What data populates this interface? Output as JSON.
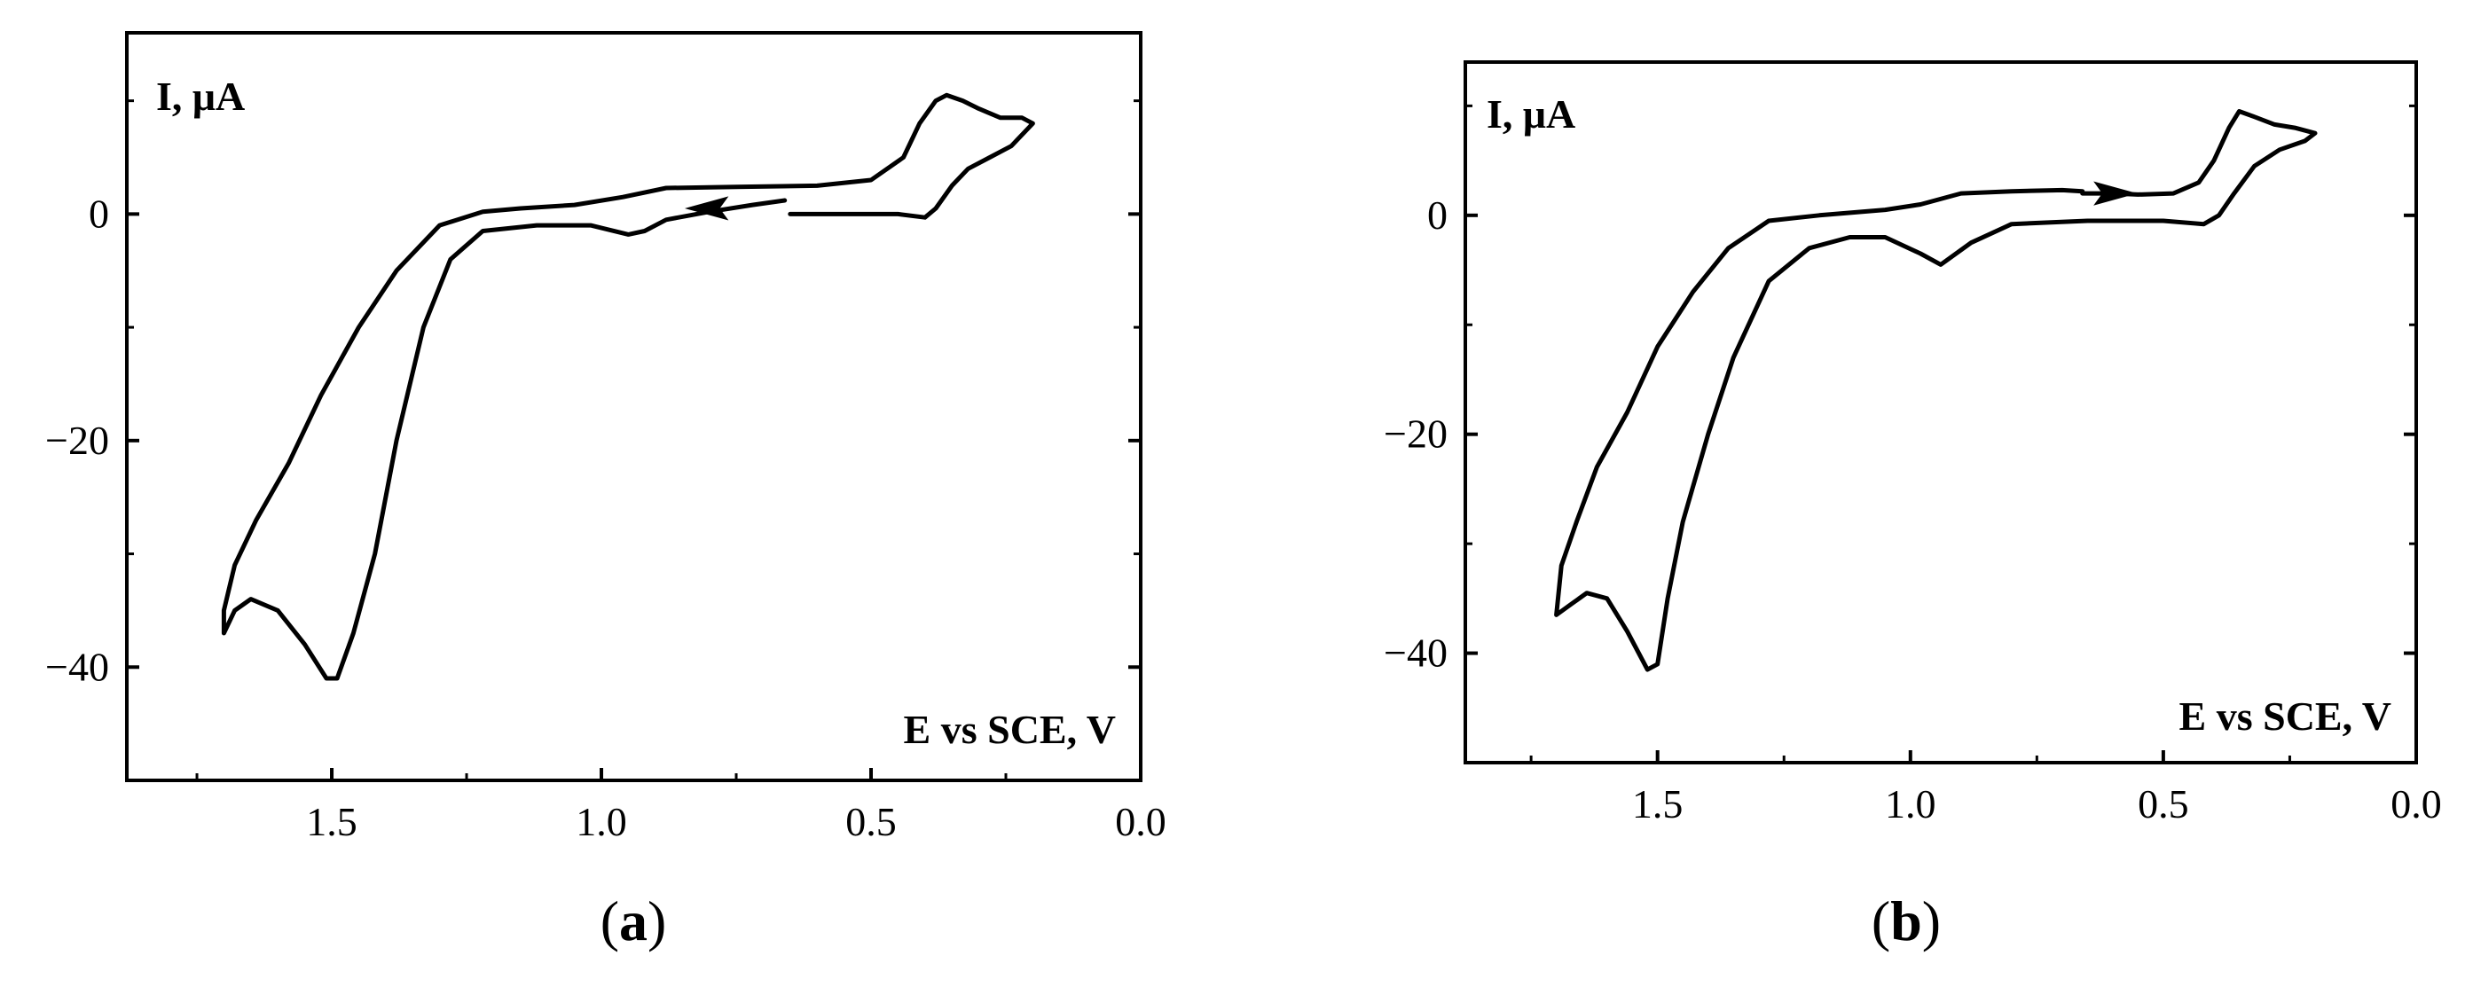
{
  "chart_data": [
    {
      "type": "line",
      "panel_label": "a",
      "ylabel": "I, μA",
      "xlabel": "E vs SCE, V",
      "xlim": [
        1.88,
        0.0
      ],
      "ylim": [
        -50,
        16
      ],
      "x_ticks": [
        "1.5",
        "1.0",
        "0.5",
        "0.0"
      ],
      "y_ticks": [
        "0",
        "−20",
        "−40"
      ],
      "grid": false,
      "scan_direction": "toward higher potential (arrow pointing left at 0.8 V)",
      "series": [
        {
          "points": [
            [
              0.65,
              0.0
            ],
            [
              0.55,
              0.0
            ],
            [
              0.45,
              0.0
            ],
            [
              0.4,
              -0.3
            ],
            [
              0.38,
              0.5
            ],
            [
              0.35,
              2.5
            ],
            [
              0.32,
              4.0
            ],
            [
              0.28,
              5.0
            ],
            [
              0.24,
              6.0
            ],
            [
              0.2,
              8.0
            ],
            [
              0.22,
              8.5
            ],
            [
              0.26,
              8.5
            ],
            [
              0.3,
              9.3
            ],
            [
              0.33,
              10.0
            ],
            [
              0.36,
              10.5
            ],
            [
              0.38,
              10.0
            ],
            [
              0.41,
              8.0
            ],
            [
              0.44,
              5.0
            ],
            [
              0.5,
              3.0
            ],
            [
              0.6,
              2.5
            ],
            [
              0.75,
              2.4
            ],
            [
              0.88,
              2.3
            ],
            [
              0.96,
              1.5
            ],
            [
              1.05,
              0.8
            ],
            [
              1.15,
              0.5
            ],
            [
              1.22,
              0.2
            ],
            [
              1.3,
              -1.0
            ],
            [
              1.38,
              -5.0
            ],
            [
              1.45,
              -10.0
            ],
            [
              1.52,
              -16.0
            ],
            [
              1.58,
              -22.0
            ],
            [
              1.64,
              -27.0
            ],
            [
              1.68,
              -31.0
            ],
            [
              1.7,
              -35.0
            ],
            [
              1.7,
              -37.0
            ],
            [
              1.68,
              -35.0
            ],
            [
              1.65,
              -34.0
            ],
            [
              1.6,
              -35.0
            ],
            [
              1.55,
              -38.0
            ],
            [
              1.51,
              -41.0
            ],
            [
              1.49,
              -41.0
            ],
            [
              1.46,
              -37.0
            ],
            [
              1.42,
              -30.0
            ],
            [
              1.38,
              -20.0
            ],
            [
              1.33,
              -10.0
            ],
            [
              1.28,
              -4.0
            ],
            [
              1.22,
              -1.5
            ],
            [
              1.12,
              -1.0
            ],
            [
              1.02,
              -1.0
            ],
            [
              0.95,
              -1.8
            ],
            [
              0.92,
              -1.5
            ],
            [
              0.88,
              -0.5
            ],
            [
              0.8,
              0.2
            ],
            [
              0.72,
              0.8
            ],
            [
              0.66,
              1.2
            ]
          ]
        }
      ]
    },
    {
      "type": "line",
      "panel_label": "b",
      "ylabel": "I, μA",
      "xlabel": "E vs SCE, V",
      "xlim": [
        1.88,
        0.0
      ],
      "ylim": [
        -50,
        14
      ],
      "x_ticks": [
        "1.5",
        "1.0",
        "0.5",
        "0.0"
      ],
      "y_ticks": [
        "0",
        "−20",
        "−40"
      ],
      "grid": false,
      "scan_direction": "toward lower potential (arrow pointing right at 0.6 V)",
      "series": [
        {
          "points": [
            [
              0.66,
              2.0
            ],
            [
              0.6,
              2.0
            ],
            [
              0.55,
              1.9
            ],
            [
              0.48,
              2.0
            ],
            [
              0.43,
              3.0
            ],
            [
              0.4,
              5.0
            ],
            [
              0.37,
              8.0
            ],
            [
              0.35,
              9.5
            ],
            [
              0.32,
              9.0
            ],
            [
              0.28,
              8.3
            ],
            [
              0.24,
              8.0
            ],
            [
              0.2,
              7.5
            ],
            [
              0.22,
              6.8
            ],
            [
              0.27,
              6.0
            ],
            [
              0.32,
              4.5
            ],
            [
              0.36,
              2.0
            ],
            [
              0.39,
              0.0
            ],
            [
              0.42,
              -0.8
            ],
            [
              0.5,
              -0.5
            ],
            [
              0.65,
              -0.5
            ],
            [
              0.8,
              -0.8
            ],
            [
              0.88,
              -2.5
            ],
            [
              0.94,
              -4.5
            ],
            [
              0.98,
              -3.5
            ],
            [
              1.05,
              -2.0
            ],
            [
              1.12,
              -2.0
            ],
            [
              1.2,
              -3.0
            ],
            [
              1.28,
              -6.0
            ],
            [
              1.35,
              -13.0
            ],
            [
              1.4,
              -20.0
            ],
            [
              1.45,
              -28.0
            ],
            [
              1.48,
              -35.0
            ],
            [
              1.5,
              -41.0
            ],
            [
              1.52,
              -41.5
            ],
            [
              1.56,
              -38.0
            ],
            [
              1.6,
              -35.0
            ],
            [
              1.64,
              -34.5
            ],
            [
              1.67,
              -35.5
            ],
            [
              1.7,
              -36.5
            ],
            [
              1.69,
              -32.0
            ],
            [
              1.66,
              -28.0
            ],
            [
              1.62,
              -23.0
            ],
            [
              1.56,
              -18.0
            ],
            [
              1.5,
              -12.0
            ],
            [
              1.43,
              -7.0
            ],
            [
              1.36,
              -3.0
            ],
            [
              1.28,
              -0.5
            ],
            [
              1.18,
              0.0
            ],
            [
              1.05,
              0.5
            ],
            [
              0.98,
              1.0
            ],
            [
              0.9,
              2.0
            ],
            [
              0.8,
              2.2
            ],
            [
              0.7,
              2.3
            ],
            [
              0.66,
              2.2
            ]
          ]
        }
      ]
    }
  ]
}
